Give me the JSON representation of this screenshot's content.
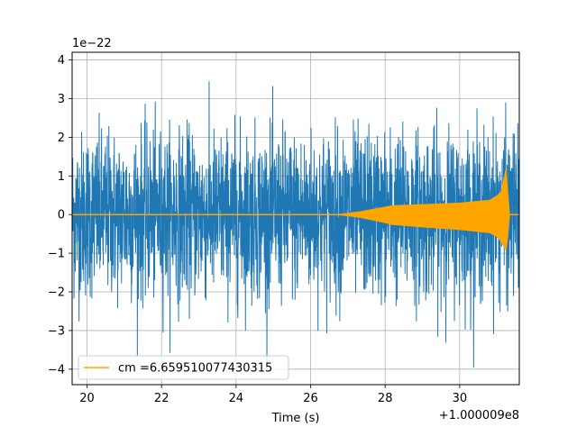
{
  "chart_data": {
    "type": "line",
    "title": "",
    "xlabel": "Time (s)",
    "ylabel": "",
    "x_offset_label": "+1.000009e8",
    "y_scale_label": "1e−22",
    "xlim": [
      19.6,
      31.6
    ],
    "ylim": [
      -4.4,
      4.2
    ],
    "x_ticks": [
      20,
      22,
      24,
      26,
      28,
      30
    ],
    "x_tick_labels": [
      "20",
      "22",
      "24",
      "26",
      "28",
      "30"
    ],
    "y_ticks": [
      -4,
      -3,
      -2,
      -1,
      0,
      1,
      2,
      3,
      4
    ],
    "y_tick_labels": [
      "−4",
      "−3",
      "−2",
      "−1",
      "0",
      "1",
      "2",
      "3",
      "4"
    ],
    "grid": true,
    "legend_position": "lower-left",
    "series": [
      {
        "name": "",
        "color": "#1f77b4",
        "kind": "noise",
        "x_range": [
          19.6,
          31.6
        ],
        "typical_amplitude": 1.7,
        "peak_max": 3.5,
        "peak_min": -4.0
      },
      {
        "name": "cm =6.659510077430315",
        "color": "#ffa500",
        "kind": "chirp",
        "envelope_x": [
          19.6,
          26.0,
          26.8,
          27.3,
          27.8,
          28.2,
          29.0,
          30.0,
          30.8,
          31.0,
          31.1,
          31.25,
          31.3,
          31.35,
          31.6
        ],
        "envelope_upper": [
          0.0,
          0.0,
          0.02,
          0.08,
          0.17,
          0.24,
          0.27,
          0.31,
          0.38,
          0.5,
          0.6,
          1.25,
          0.6,
          0.0,
          0.0
        ],
        "envelope_lower": [
          0.0,
          0.0,
          -0.02,
          -0.08,
          -0.18,
          -0.27,
          -0.33,
          -0.4,
          -0.48,
          -0.58,
          -0.7,
          -0.95,
          -0.6,
          0.0,
          0.0
        ]
      }
    ]
  }
}
